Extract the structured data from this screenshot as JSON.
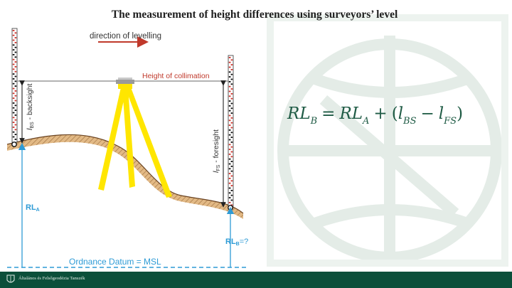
{
  "slide": {
    "title": "The measurement of height differences using surveyors’ level",
    "formula": {
      "lhs_main": "RL",
      "lhs_sub": "B",
      "equals": "=",
      "rl_a_main": "RL",
      "rl_a_sub": "A",
      "plus": "+",
      "open_paren": "(",
      "l_bs_main": "l",
      "l_bs_sub": "BS",
      "minus": "−",
      "l_fs_main": "l",
      "l_fs_sub": "FS",
      "close_paren": ")"
    },
    "footer": {
      "text": "Általános és Felsőgeodézia Tanszék"
    }
  },
  "diagram": {
    "direction_label": "direction of levelling",
    "collimation_label": "Height of collimation",
    "backsight_main": "l",
    "backsight_sub": "BS",
    "backsight_rest": " - backsight",
    "foresight_main": "l",
    "foresight_sub": "FS",
    "foresight_rest": " - foresight",
    "rl_a_main": "RL",
    "rl_a_sub": "A",
    "rl_b_main": "RL",
    "rl_b_sub": "B",
    "rl_b_suffix": "=?",
    "datum_label": "Ordnance Datum = MSL"
  },
  "colors": {
    "accent_blue": "#2e9bd6",
    "arrow_red": "#c0392b",
    "tripod_yellow": "#ffe600",
    "ground_fill": "#e2b985",
    "ground_hatch": "#8a5a2b",
    "formula_green": "#1f5b45",
    "footer_green": "#0b4f3a",
    "watermark": "#dde8e1"
  }
}
